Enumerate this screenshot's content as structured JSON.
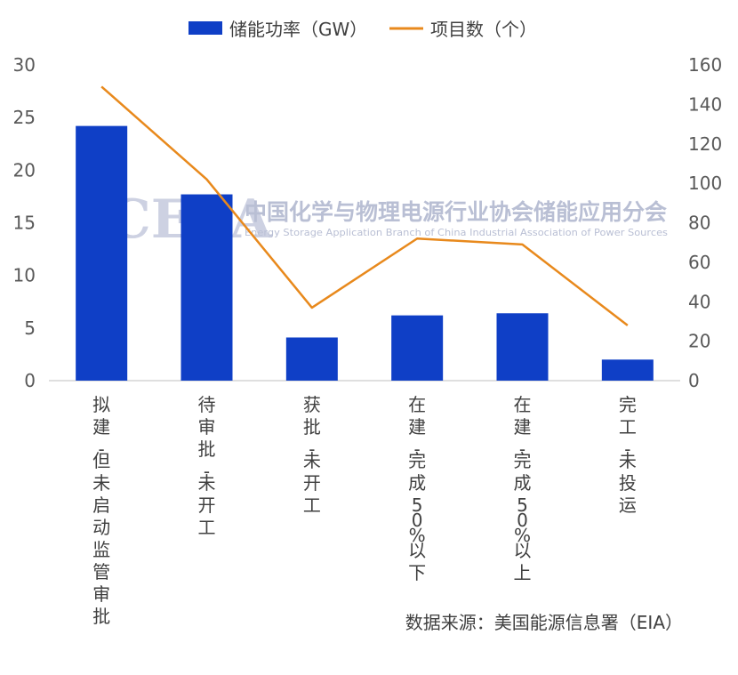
{
  "chart_data": {
    "type": "bar+line",
    "title": "",
    "categories": [
      "拟建-但未启动监管审批",
      "待审批-未开工",
      "获批-未开工",
      "在建-完成50%以下",
      "在建-完成50%以上",
      "完工-未投运"
    ],
    "series": [
      {
        "name": "储能功率（GW）",
        "type": "bar",
        "axis": "left",
        "values": [
          24.2,
          17.7,
          4.1,
          6.2,
          6.4,
          2.0
        ]
      },
      {
        "name": "项目数（个）",
        "type": "line",
        "axis": "right",
        "values": [
          149,
          102,
          37,
          72,
          69,
          28
        ]
      }
    ],
    "y_left": {
      "min": 0,
      "max": 30,
      "ticks": [
        "0",
        "5",
        "10",
        "15",
        "20",
        "25",
        "30"
      ]
    },
    "y_right": {
      "min": 0,
      "max": 160,
      "ticks": [
        "0",
        "20",
        "40",
        "60",
        "80",
        "100",
        "120",
        "140",
        "160"
      ]
    },
    "legend_position": "top-center",
    "colors": {
      "bar": "#0f3fc6",
      "line": "#e8891c",
      "axis": "#bfbfbf"
    }
  },
  "watermark": {
    "logo": "CESA",
    "title": "中国化学与物理电源行业协会储能应用分会",
    "subtitle": "Energy Storage Application Branch of China Industrial Association of Power Sources"
  },
  "source": "数据来源：美国能源信息署（EIA）"
}
